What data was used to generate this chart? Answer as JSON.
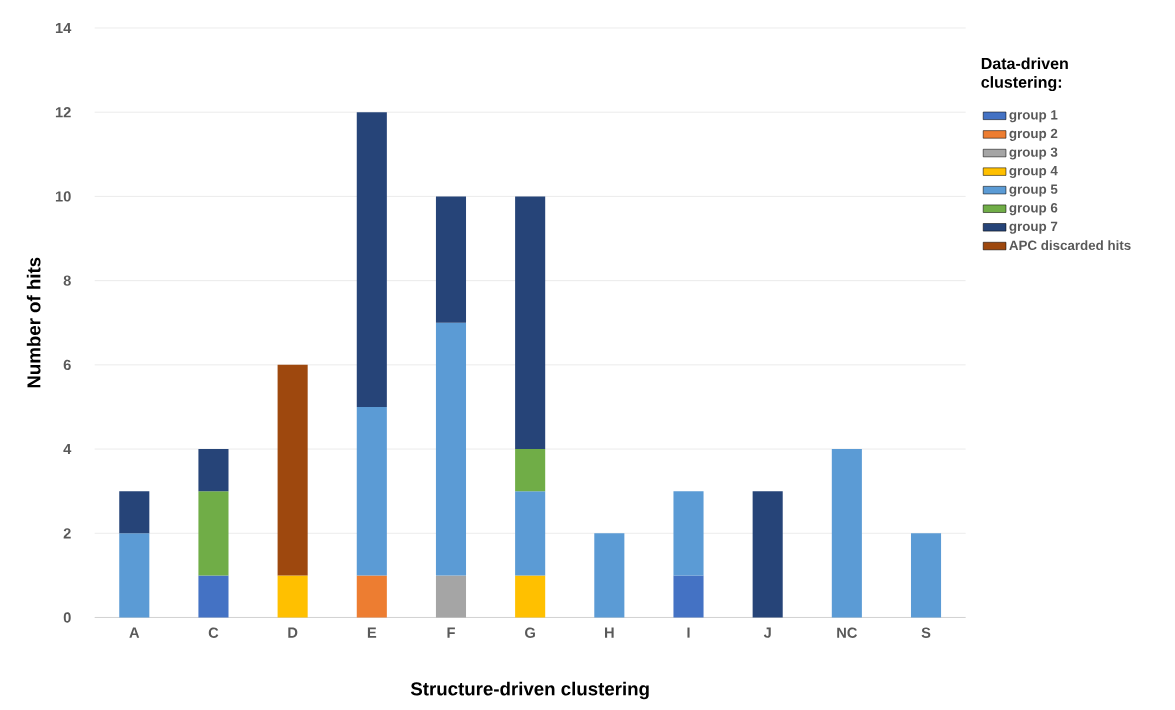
{
  "chart_data": {
    "type": "bar",
    "stacked": true,
    "xlabel": "Structure-driven clustering",
    "ylabel": "Number of hits",
    "legend_title": "Data-driven clustering:",
    "categories": [
      "A",
      "C",
      "D",
      "E",
      "F",
      "G",
      "H",
      "I",
      "J",
      "NC",
      "S"
    ],
    "series": [
      {
        "name": "group 1",
        "color": "#4472c4",
        "values": [
          null,
          1,
          null,
          null,
          null,
          null,
          null,
          1,
          null,
          null,
          null
        ]
      },
      {
        "name": "group 2",
        "color": "#ed7d31",
        "values": [
          null,
          null,
          null,
          1,
          null,
          null,
          null,
          null,
          null,
          null,
          null
        ]
      },
      {
        "name": "group 3",
        "color": "#a5a5a5",
        "values": [
          null,
          null,
          null,
          null,
          1,
          null,
          null,
          null,
          null,
          null,
          null
        ]
      },
      {
        "name": "group 4",
        "color": "#ffc000",
        "values": [
          null,
          null,
          1,
          null,
          null,
          1,
          null,
          null,
          null,
          null,
          null
        ]
      },
      {
        "name": "group 5",
        "color": "#5b9bd5",
        "values": [
          2,
          null,
          null,
          4,
          6,
          2,
          2,
          2,
          null,
          4,
          2
        ]
      },
      {
        "name": "group 6",
        "color": "#70ad47",
        "values": [
          null,
          2,
          null,
          null,
          null,
          1,
          null,
          null,
          null,
          null,
          null
        ]
      },
      {
        "name": "group 7",
        "color": "#264478",
        "values": [
          1,
          1,
          null,
          7,
          3,
          6,
          null,
          null,
          3,
          null,
          null
        ]
      },
      {
        "name": "APC discarded hits",
        "color": "#9e480e",
        "values": [
          null,
          null,
          5,
          null,
          null,
          null,
          null,
          null,
          null,
          null,
          null
        ]
      }
    ],
    "ylim": [
      0,
      14
    ],
    "yticks": [
      0,
      2,
      4,
      6,
      8,
      10,
      12,
      14
    ],
    "grid": "y",
    "legend": "right"
  }
}
